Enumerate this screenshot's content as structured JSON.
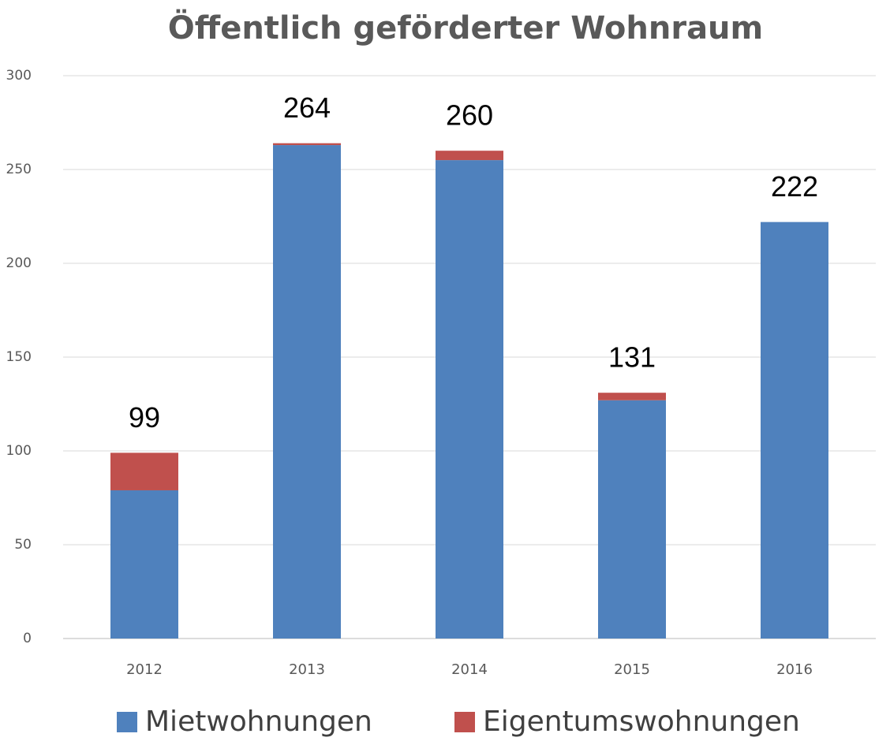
{
  "chart_data": {
    "type": "bar",
    "stacked": true,
    "title": "Öffentlich geförderter Wohnraum",
    "categories": [
      "2012",
      "2013",
      "2014",
      "2015",
      "2016"
    ],
    "series": [
      {
        "name": "Mietwohnungen",
        "color": "#4f81bd",
        "values": [
          79,
          263,
          255,
          127,
          222
        ]
      },
      {
        "name": "Eigentumswohnungen",
        "color": "#c0504d",
        "values": [
          20,
          1,
          5,
          4,
          0
        ]
      }
    ],
    "totals": [
      99,
      264,
      260,
      131,
      222
    ],
    "ylim": [
      0,
      300
    ],
    "yticks": [
      0,
      50,
      100,
      150,
      200,
      250,
      300
    ],
    "grid": true,
    "legend": "bottom"
  }
}
